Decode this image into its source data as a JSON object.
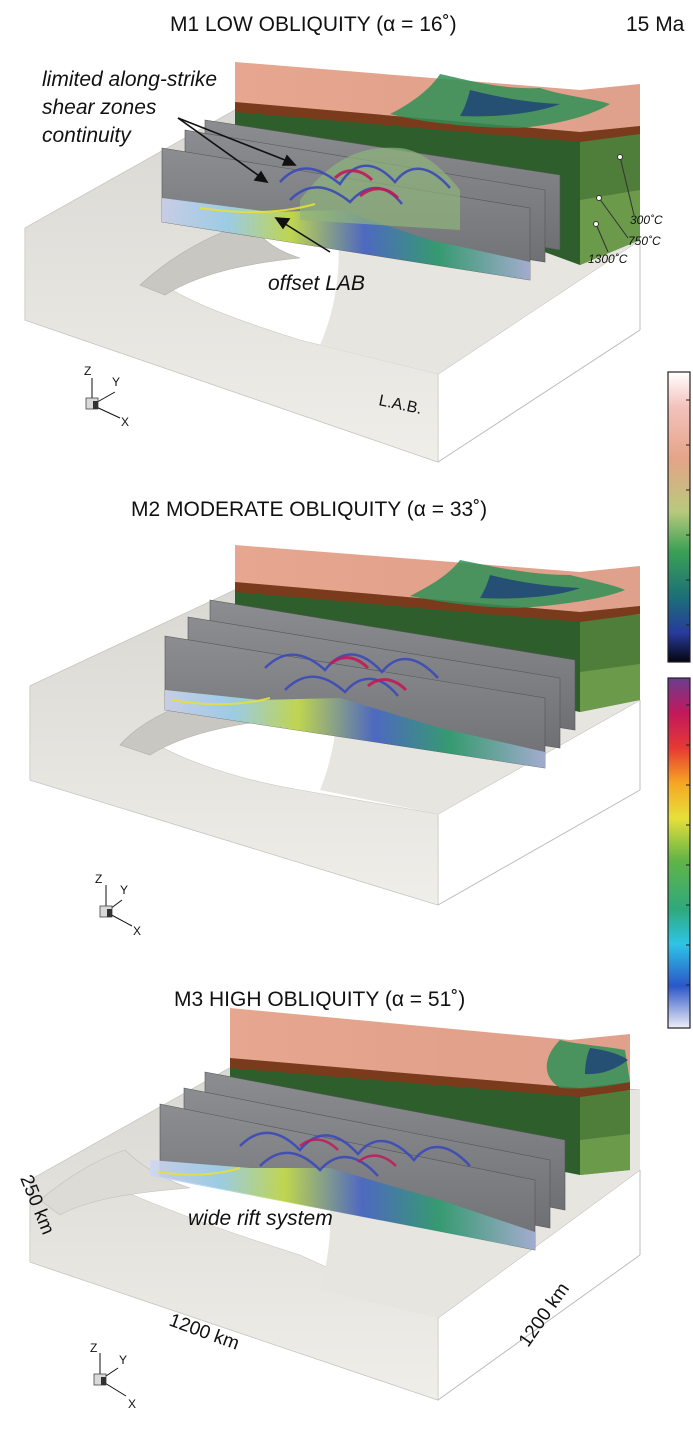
{
  "time_label": "15 Ma",
  "panels": [
    {
      "title": "M1 LOW OBLIQUITY (α = 16˚)"
    },
    {
      "title": "M2 MODERATE OBLIQUITY (α = 33˚)"
    },
    {
      "title": "M3 HIGH OBLIQUITY (α = 51˚)"
    }
  ],
  "annotations": {
    "shear_line1": "limited along-strike",
    "shear_line2": "shear zones",
    "shear_line3": "continuity",
    "offset_lab": "offset LAB",
    "lab": "L.A.B.",
    "wide_rift": "wide rift system"
  },
  "isotherms": [
    "300˚C",
    "750˚C",
    "1300˚C"
  ],
  "axes": {
    "z": "Z",
    "y": "Y",
    "x": "X"
  },
  "dimensions": {
    "depth": "250 km",
    "width": "1200 km",
    "length": "1200 km"
  },
  "colors": {
    "top_surface": "#e2a08a",
    "crust_band": "#7a3a1c",
    "lithosphere": "#2e5e2c",
    "lower_lithosphere": "#6a9a4a",
    "lab_surface": "#ecebe6",
    "slice": "#7d7f83"
  }
}
